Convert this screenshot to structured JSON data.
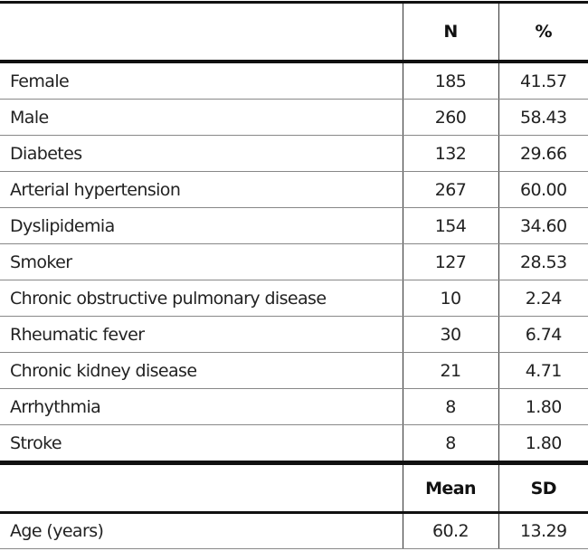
{
  "header": {
    "col1": "",
    "col2": "N",
    "col3": "%"
  },
  "rows": [
    {
      "label": "Female",
      "n": "185",
      "pct": "41.57"
    },
    {
      "label": "Male",
      "n": "260",
      "pct": "58.43"
    },
    {
      "label": "Diabetes",
      "n": "132",
      "pct": "29.66"
    },
    {
      "label": "Arterial hypertension",
      "n": "267",
      "pct": "60.00"
    },
    {
      "label": "Dyslipidemia",
      "n": "154",
      "pct": "34.60"
    },
    {
      "label": "Smoker",
      "n": "127",
      "pct": "28.53"
    },
    {
      "label": "Chronic obstructive pulmonary disease",
      "n": "10",
      "pct": "2.24"
    },
    {
      "label": "Rheumatic fever",
      "n": "30",
      "pct": "6.74"
    },
    {
      "label": "Chronic kidney disease",
      "n": "21",
      "pct": "4.71"
    },
    {
      "label": "Arrhythmia",
      "n": "8",
      "pct": "1.80"
    },
    {
      "label": "Stroke",
      "n": "8",
      "pct": "1.80"
    }
  ],
  "header2": {
    "col1": "",
    "col2": "Mean",
    "col3": "SD"
  },
  "rows2": [
    {
      "label": "Age (years)",
      "mean": "60.2",
      "sd": "13.29"
    }
  ]
}
